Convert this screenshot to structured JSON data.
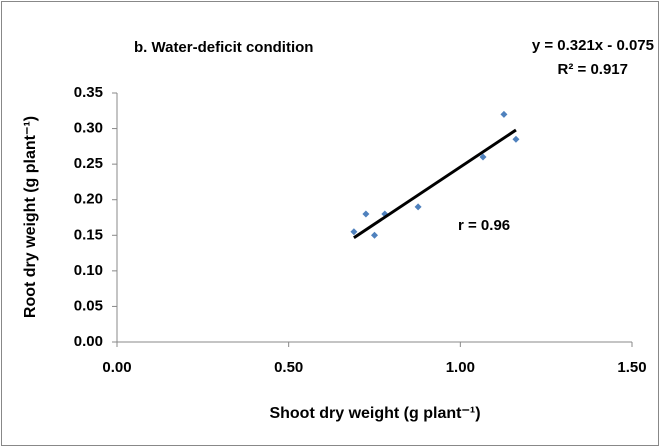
{
  "chart_data": {
    "type": "scatter",
    "title": "b. Water-deficit condition",
    "x_label": "Shoot dry weight (g plant⁻¹)",
    "y_label": "Root dry weight (g plant⁻¹)",
    "annotations": [
      "y = 0.321x - 0.075",
      "R² = 0.917",
      "r = 0.96"
    ],
    "series": [
      {
        "name": "Water-deficit",
        "color": "#4f81bd",
        "x": [
          0.69,
          0.725,
          0.75,
          0.78,
          0.877,
          1.066,
          1.127,
          1.162
        ],
        "values": [
          0.155,
          0.18,
          0.15,
          0.18,
          0.19,
          0.26,
          0.32,
          0.285
        ]
      }
    ],
    "trendline": {
      "slope": 0.321,
      "intercept": -0.075,
      "color": "#000000"
    },
    "xlim": [
      0,
      1.5
    ],
    "xticks": [
      {
        "value": 0,
        "label": "0.00"
      },
      {
        "value": 0.5,
        "label": "0.50"
      },
      {
        "value": 1,
        "label": "1.00"
      },
      {
        "value": 1.5,
        "label": "1.50"
      }
    ],
    "ylim": [
      0,
      0.35
    ],
    "yticks": [
      {
        "value": 0,
        "label": "0.00"
      },
      {
        "value": 0.05,
        "label": "0.05"
      },
      {
        "value": 0.1,
        "label": "0.10"
      },
      {
        "value": 0.15,
        "label": "0.15"
      },
      {
        "value": 0.2,
        "label": "0.20"
      },
      {
        "value": 0.25,
        "label": "0.25"
      },
      {
        "value": 0.3,
        "label": "0.30"
      },
      {
        "value": 0.35,
        "label": "0.35"
      }
    ],
    "grid": false
  }
}
